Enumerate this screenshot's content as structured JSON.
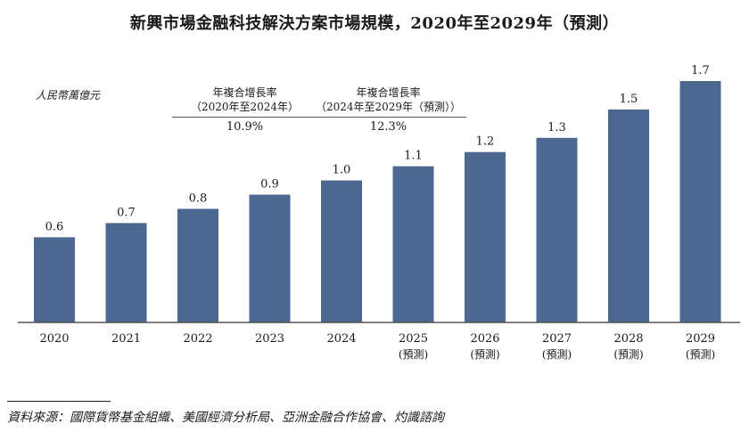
{
  "chart_data": {
    "type": "bar",
    "title": "新興市場金融科技解決方案市場規模，2020年至2029年（預測）",
    "unit_label": "人民幣萬億元",
    "categories": [
      "2020",
      "2021",
      "2022",
      "2023",
      "2024",
      "2025",
      "2026",
      "2027",
      "2028",
      "2029"
    ],
    "forecast_labels": [
      "",
      "",
      "",
      "",
      "",
      "(預測)",
      "(預測)",
      "(預測)",
      "(預測)",
      "(預測)"
    ],
    "values": [
      0.6,
      0.7,
      0.8,
      0.9,
      1.0,
      1.1,
      1.2,
      1.3,
      1.5,
      1.7
    ],
    "value_labels": [
      "0.6",
      "0.7",
      "0.8",
      "0.9",
      "1.0",
      "1.1",
      "1.2",
      "1.3",
      "1.5",
      "1.7"
    ],
    "ylim": [
      0,
      1.7
    ],
    "bar_color": "#4d6890",
    "cagr": [
      {
        "title": "年複合增長率",
        "period": "（2020年至2024年）",
        "value": "10.9%"
      },
      {
        "title": "年複合增長率",
        "period": "（2024年至2029年（預測））",
        "value": "12.3%"
      }
    ]
  },
  "source": "資料來源：國際貨幣基金組織、美國經濟分析局、亞洲金融合作協會、灼識諮詢"
}
